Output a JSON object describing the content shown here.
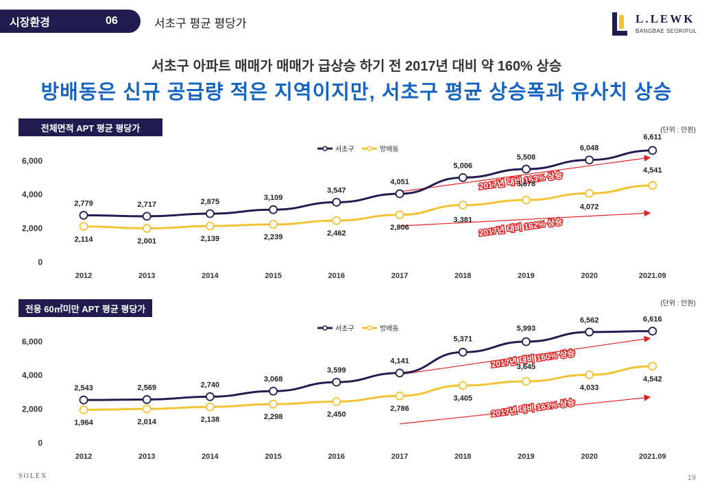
{
  "header": {
    "section": "시장환경",
    "number": "06",
    "title": "서초구 평균 평당가"
  },
  "logo": {
    "name": "L.LEWK",
    "sub": "BANGBAE SEORIPUL"
  },
  "subheadline": "서초구 아파트 매매가 매매가 급상승 하기 전 2017년 대비 약 160% 상승",
  "headline": "방배동은 신규 공급량 적은 지역이지만, 서초구 평균 상승폭과 유사치 상승",
  "colors": {
    "navy": "#1f1d4f",
    "gold": "#f2c230",
    "red": "#e32020",
    "blue": "#1565c0"
  },
  "chart_data": [
    {
      "type": "line",
      "title": "전체면적 APT 평균 평당가",
      "unit": "(단위 : 만원)",
      "categories": [
        "2012",
        "2013",
        "2014",
        "2015",
        "2016",
        "2017",
        "2018",
        "2019",
        "2020",
        "2021.09"
      ],
      "ylim": [
        0,
        7000
      ],
      "yticks": [
        0,
        2000,
        4000,
        6000
      ],
      "ytick_labels": [
        "0",
        "2,000",
        "4,000",
        "6,000"
      ],
      "series": [
        {
          "name": "서초구",
          "values": [
            2779,
            2717,
            2875,
            3109,
            3547,
            4051,
            5006,
            5508,
            6048,
            6611
          ],
          "labels": [
            "2,779",
            "2,717",
            "2,875",
            "3,109",
            "3,547",
            "4,051",
            "5,006",
            "5,508",
            "6,048",
            "6,611"
          ]
        },
        {
          "name": "방배동",
          "values": [
            2114,
            2001,
            2139,
            2239,
            2462,
            2806,
            3381,
            3678,
            4072,
            4541
          ],
          "labels": [
            "2,114",
            "2,001",
            "2,139",
            "2,239",
            "2,462",
            "2,806",
            "3,381",
            "3,678",
            "4,072",
            "4,541"
          ]
        }
      ],
      "annotations": [
        "2017년 대비 163% 상승",
        "2017년 대비 162% 상승"
      ]
    },
    {
      "type": "line",
      "title": "전용 60㎡미만  APT 평균 평당가",
      "unit": "(단위 : 만원)",
      "categories": [
        "2012",
        "2013",
        "2014",
        "2015",
        "2016",
        "2017",
        "2018",
        "2019",
        "2020",
        "2021.09"
      ],
      "ylim": [
        0,
        7000
      ],
      "yticks": [
        0,
        2000,
        4000,
        6000
      ],
      "ytick_labels": [
        "0",
        "2,000",
        "4,000",
        "6,000"
      ],
      "series": [
        {
          "name": "서초구",
          "values": [
            2543,
            2569,
            2740,
            3068,
            3599,
            4141,
            5371,
            5993,
            6562,
            6616
          ],
          "labels": [
            "2,543",
            "2,569",
            "2,740",
            "3,068",
            "3,599",
            "4,141",
            "5,371",
            "5,993",
            "6,562",
            "6,616"
          ]
        },
        {
          "name": "방배동",
          "values": [
            1964,
            2014,
            2138,
            2298,
            2450,
            2786,
            3405,
            3645,
            4033,
            4542
          ],
          "labels": [
            "1,964",
            "2,014",
            "2,138",
            "2,298",
            "2,450",
            "2,786",
            "3,405",
            "3,645",
            "4,033",
            "4,542"
          ]
        }
      ],
      "annotations": [
        "2017년 대비 160% 상승",
        "2017년 대비 163% 상승"
      ]
    }
  ],
  "footer": {
    "brand": "SOLEX",
    "page": "19"
  }
}
